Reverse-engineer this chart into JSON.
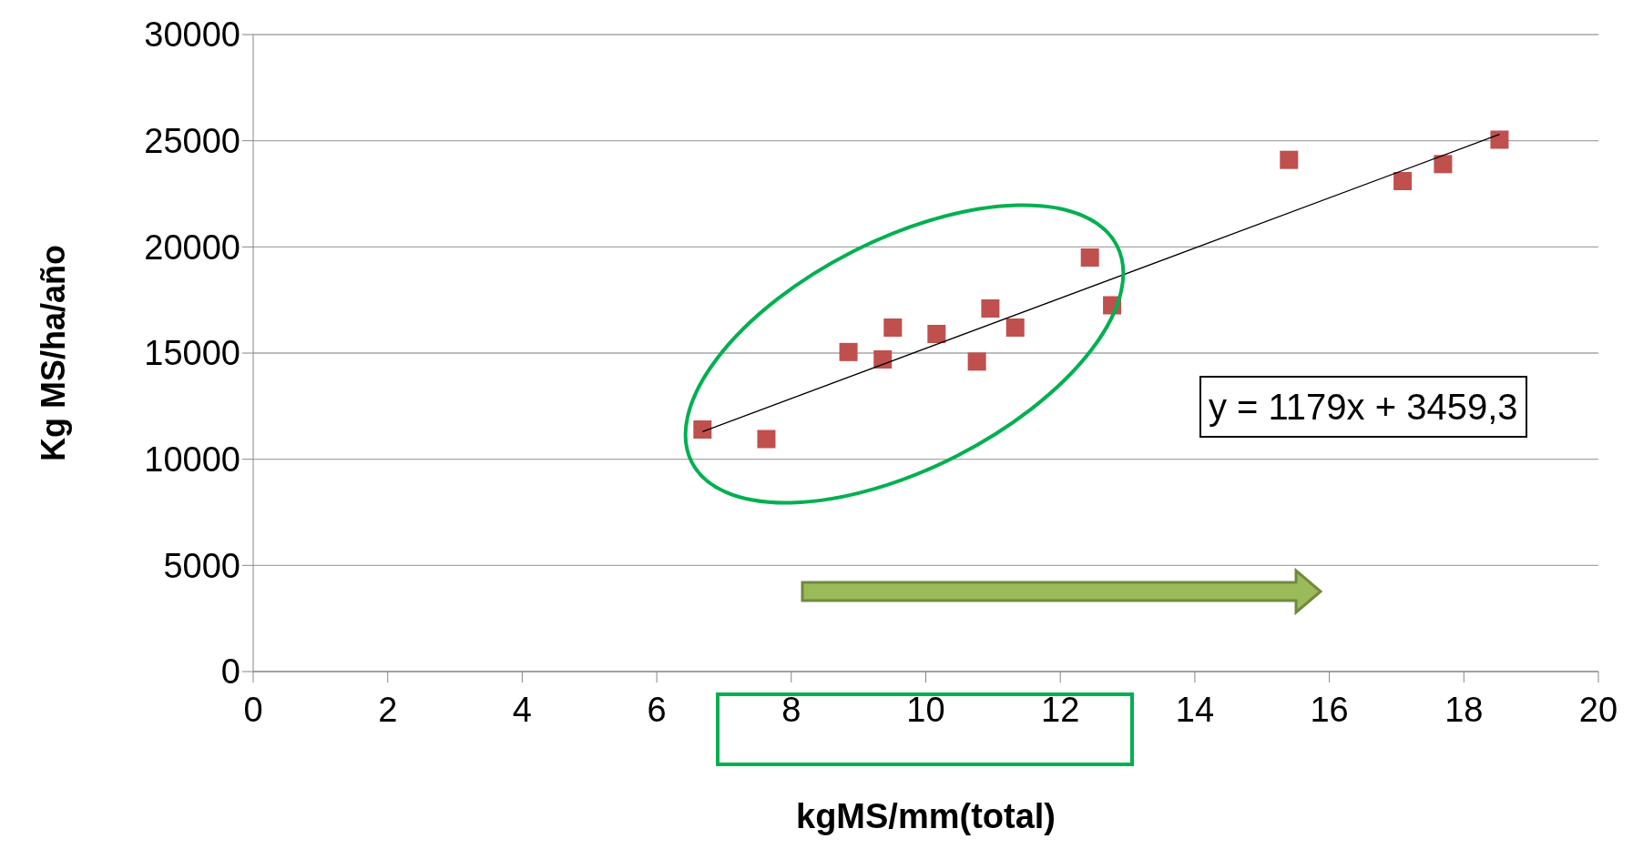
{
  "chart_data": {
    "type": "scatter",
    "xlabel": "kgMS/mm(total)",
    "ylabel": "Kg MS/ha/año",
    "xlim": [
      0,
      20
    ],
    "xticks": [
      0,
      2,
      4,
      6,
      8,
      10,
      12,
      14,
      16,
      18,
      20
    ],
    "ylim": [
      0,
      30000
    ],
    "yticks": [
      0,
      5000,
      10000,
      15000,
      20000,
      25000,
      30000
    ],
    "grid": "y",
    "annotations": [
      "y = 1179x + 3459,3"
    ],
    "series": [
      {
        "marker": "square",
        "color": "#c0504d",
        "x": [
          6.68,
          7.63,
          8.85,
          9.36,
          9.51,
          10.16,
          10.76,
          10.96,
          11.27,
          11.33,
          12.44,
          12.77,
          15.4,
          17.09,
          17.69,
          18.53
        ],
        "values": [
          11400,
          10950,
          15050,
          14700,
          16200,
          15900,
          14600,
          17100,
          null,
          16200,
          19500,
          17250,
          24100,
          23100,
          23900,
          25050
        ]
      },
      {
        "type": "line",
        "color": "#000000",
        "x": [
          6.68,
          18.53
        ],
        "values": [
          11300,
          25300
        ]
      }
    ]
  }
}
